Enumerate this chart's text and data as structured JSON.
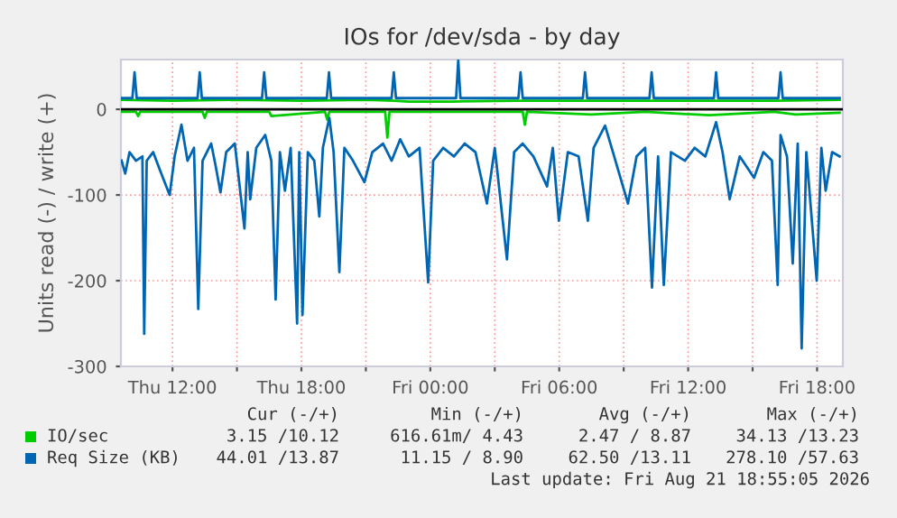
{
  "chart_data": {
    "type": "line",
    "title": "IOs for /dev/sda - by day",
    "ylabel": "Units read (-) / write (+)",
    "xlim": [
      "2026-08-20T09:36",
      "2026-08-21T19:12"
    ],
    "ylim": [
      -300,
      58
    ],
    "xticks": [
      {
        "value": "2026-08-20T12:00",
        "label": "Thu 12:00"
      },
      {
        "value": "2026-08-20T15:00",
        "label": null
      },
      {
        "value": "2026-08-20T18:00",
        "label": "Thu 18:00"
      },
      {
        "value": "2026-08-20T21:00",
        "label": null
      },
      {
        "value": "2026-08-21T00:00",
        "label": "Fri 00:00"
      },
      {
        "value": "2026-08-21T03:00",
        "label": null
      },
      {
        "value": "2026-08-21T06:00",
        "label": "Fri 06:00"
      },
      {
        "value": "2026-08-21T09:00",
        "label": null
      },
      {
        "value": "2026-08-21T12:00",
        "label": "Fri 12:00"
      },
      {
        "value": "2026-08-21T15:00",
        "label": null
      },
      {
        "value": "2026-08-21T18:00",
        "label": "Fri 18:00"
      }
    ],
    "yticks": [
      -300,
      -200,
      -100,
      0
    ],
    "grid": true,
    "legend": "bottom",
    "marker": "none",
    "line_style": "solid",
    "ref_lines": [
      {
        "axis": "y",
        "value": 0,
        "label": null,
        "color": "#000000"
      }
    ],
    "series": [
      {
        "name": "IO/sec",
        "color": "#00cc00",
        "x": [
          "2026-08-20T09:38",
          "2026-08-20T12:00",
          "2026-08-20T15:00",
          "2026-08-20T18:00",
          "2026-08-20T21:00",
          "2026-08-20T22:18",
          "2026-08-20T23:00",
          "2026-08-21T01:00",
          "2026-08-21T04:00",
          "2026-08-21T07:00",
          "2026-08-21T10:00",
          "2026-08-21T13:00",
          "2026-08-21T16:00",
          "2026-08-21T19:03"
        ],
        "values": [
          11,
          10,
          11,
          10,
          11,
          10,
          9,
          9,
          10,
          10,
          10,
          10,
          10,
          11
        ]
      },
      {
        "name": "Req Size (KB)",
        "color": "#0066b3",
        "x": [
          "2026-08-20T09:38",
          "2026-08-20T10:08",
          "2026-08-20T10:14",
          "2026-08-20T10:20",
          "2026-08-20T13:10",
          "2026-08-20T13:16",
          "2026-08-20T13:22",
          "2026-08-20T16:10",
          "2026-08-20T16:16",
          "2026-08-20T16:22",
          "2026-08-20T19:11",
          "2026-08-20T19:17",
          "2026-08-20T19:23",
          "2026-08-20T22:12",
          "2026-08-20T22:18",
          "2026-08-20T22:24",
          "2026-08-21T01:12",
          "2026-08-21T01:18",
          "2026-08-21T01:24",
          "2026-08-21T04:06",
          "2026-08-21T04:12",
          "2026-08-21T04:18",
          "2026-08-21T07:06",
          "2026-08-21T07:12",
          "2026-08-21T07:18",
          "2026-08-21T10:12",
          "2026-08-21T10:18",
          "2026-08-21T10:24",
          "2026-08-21T13:12",
          "2026-08-21T13:18",
          "2026-08-21T13:24",
          "2026-08-21T16:12",
          "2026-08-21T16:18",
          "2026-08-21T16:24",
          "2026-08-21T19:03"
        ],
        "values": [
          13,
          13,
          43,
          13,
          13,
          43,
          13,
          13,
          43,
          13,
          13,
          43,
          13,
          13,
          43,
          13,
          13,
          57,
          13,
          13,
          43,
          13,
          13,
          43,
          13,
          13,
          43,
          13,
          13,
          43,
          13,
          13,
          43,
          13,
          13
        ]
      },
      {
        "color": "#00cc00",
        "x": [
          "2026-08-20T09:38",
          "2026-08-20T10:18",
          "2026-08-20T10:24",
          "2026-08-20T10:30",
          "2026-08-20T13:24",
          "2026-08-20T13:30",
          "2026-08-20T13:36",
          "2026-08-20T16:30",
          "2026-08-20T16:36",
          "2026-08-20T19:06",
          "2026-08-20T19:12",
          "2026-08-20T19:18",
          "2026-08-20T21:54",
          "2026-08-20T22:00",
          "2026-08-20T22:06",
          "2026-08-21T02:30",
          "2026-08-21T03:00",
          "2026-08-21T04:18",
          "2026-08-21T04:24",
          "2026-08-21T04:30",
          "2026-08-21T07:30",
          "2026-08-21T10:00",
          "2026-08-21T13:00",
          "2026-08-21T16:00",
          "2026-08-21T17:00",
          "2026-08-21T19:03"
        ],
        "values": [
          -3,
          -3,
          -8,
          -3,
          -3,
          -10,
          -3,
          -3,
          -8,
          -3,
          -12,
          -3,
          -3,
          -33,
          -3,
          -3,
          -3,
          -3,
          -18,
          -3,
          -6,
          -3,
          -7,
          -3,
          -6,
          -4
        ]
      },
      {
        "color": "#0066b3",
        "x": [
          "2026-08-20T09:38",
          "2026-08-20T09:48",
          "2026-08-20T10:00",
          "2026-08-20T10:18",
          "2026-08-20T10:36",
          "2026-08-20T10:41",
          "2026-08-20T10:48",
          "2026-08-20T11:06",
          "2026-08-20T11:24",
          "2026-08-20T11:52",
          "2026-08-20T12:06",
          "2026-08-20T12:25",
          "2026-08-20T12:42",
          "2026-08-20T13:00",
          "2026-08-20T13:12",
          "2026-08-20T13:24",
          "2026-08-20T13:48",
          "2026-08-20T14:00",
          "2026-08-20T14:14",
          "2026-08-20T14:30",
          "2026-08-20T14:54",
          "2026-08-20T15:21",
          "2026-08-20T15:30",
          "2026-08-20T15:37",
          "2026-08-20T15:54",
          "2026-08-20T16:19",
          "2026-08-20T16:36",
          "2026-08-20T16:48",
          "2026-08-20T17:00",
          "2026-08-20T17:14",
          "2026-08-20T17:30",
          "2026-08-20T17:48",
          "2026-08-20T17:54",
          "2026-08-20T18:03",
          "2026-08-20T18:18",
          "2026-08-20T18:36",
          "2026-08-20T18:50",
          "2026-08-20T19:00",
          "2026-08-20T19:18",
          "2026-08-20T19:30",
          "2026-08-20T19:46",
          "2026-08-20T20:00",
          "2026-08-20T20:24",
          "2026-08-20T20:56",
          "2026-08-20T21:18",
          "2026-08-20T21:48",
          "2026-08-20T22:12",
          "2026-08-20T22:36",
          "2026-08-20T23:00",
          "2026-08-20T23:30",
          "2026-08-20T23:54",
          "2026-08-21T00:08",
          "2026-08-21T00:36",
          "2026-08-21T01:06",
          "2026-08-21T01:36",
          "2026-08-21T02:06",
          "2026-08-21T02:38",
          "2026-08-21T03:00",
          "2026-08-21T03:34",
          "2026-08-21T03:54",
          "2026-08-21T04:18",
          "2026-08-21T04:48",
          "2026-08-21T05:26",
          "2026-08-21T05:42",
          "2026-08-21T05:59",
          "2026-08-21T06:24",
          "2026-08-21T06:54",
          "2026-08-21T07:20",
          "2026-08-21T07:36",
          "2026-08-21T08:08",
          "2026-08-21T08:30",
          "2026-08-21T09:12",
          "2026-08-21T09:36",
          "2026-08-21T10:00",
          "2026-08-21T10:19",
          "2026-08-21T10:36",
          "2026-08-21T10:52",
          "2026-08-21T11:12",
          "2026-08-21T11:51",
          "2026-08-21T12:18",
          "2026-08-21T12:48",
          "2026-08-21T13:18",
          "2026-08-21T13:36",
          "2026-08-21T13:56",
          "2026-08-21T14:24",
          "2026-08-21T15:04",
          "2026-08-21T15:30",
          "2026-08-21T15:54",
          "2026-08-21T16:10",
          "2026-08-21T16:18",
          "2026-08-21T16:36",
          "2026-08-21T16:52",
          "2026-08-21T17:06",
          "2026-08-21T17:17",
          "2026-08-21T17:30",
          "2026-08-21T17:59",
          "2026-08-21T18:12",
          "2026-08-21T18:24",
          "2026-08-21T18:42",
          "2026-08-21T19:03"
        ],
        "values": [
          -60,
          -75,
          -50,
          -60,
          -55,
          -262,
          -60,
          -50,
          -70,
          -100,
          -55,
          -18,
          -60,
          -45,
          -233,
          -60,
          -40,
          -65,
          -97,
          -50,
          -40,
          -139,
          -50,
          -105,
          -45,
          -30,
          -60,
          -222,
          -50,
          -95,
          -45,
          -250,
          -50,
          -240,
          -50,
          -60,
          -125,
          -45,
          -10,
          -50,
          -190,
          -45,
          -60,
          -85,
          -50,
          -40,
          -60,
          -35,
          -55,
          -45,
          -202,
          -60,
          -45,
          -55,
          -40,
          -50,
          -110,
          -45,
          -175,
          -50,
          -40,
          -55,
          -90,
          -45,
          -130,
          -50,
          -55,
          -130,
          -45,
          -19,
          -50,
          -110,
          -55,
          -45,
          -208,
          -55,
          -205,
          -50,
          -60,
          -45,
          -55,
          -15,
          -50,
          -105,
          -55,
          -80,
          -50,
          -60,
          -205,
          -30,
          -55,
          -180,
          -40,
          -279,
          -50,
          -200,
          -45,
          -95,
          -50,
          -55
        ]
      }
    ],
    "annotations": [
      "Cur (-/+)",
      "Min (-/+)",
      "Avg (-/+)",
      "Max (-/+)",
      "3.15 /10.12",
      "616.61m/ 4.43",
      "2.47 / 8.87",
      "34.13 /13.23",
      "44.01 /13.87",
      "11.15 / 8.90",
      "62.50 /13.11",
      "278.10 /57.63",
      "Last update: Fri Aug 21 18:55:05 2026"
    ]
  }
}
